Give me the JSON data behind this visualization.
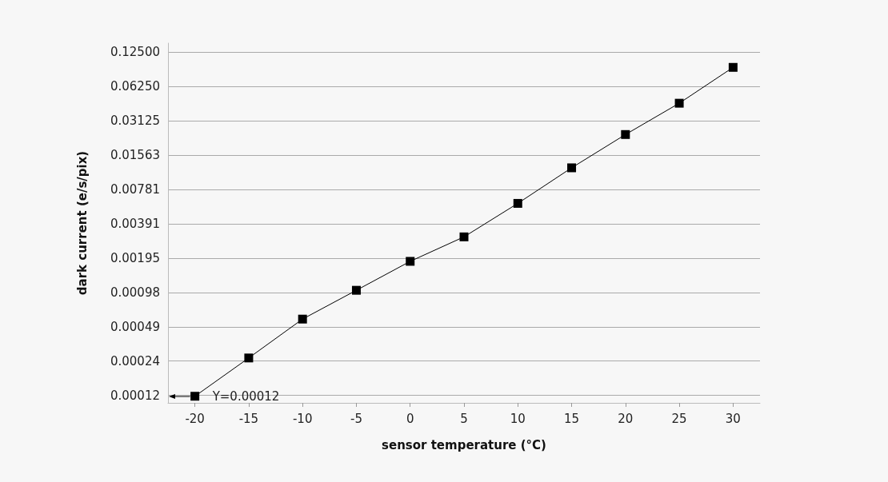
{
  "chart_data": {
    "type": "line",
    "xlabel": "sensor temperature (°C)",
    "ylabel": "dark current (e/s/pix)",
    "x": [
      -20,
      -15,
      -10,
      -5,
      0,
      5,
      10,
      15,
      20,
      25,
      30
    ],
    "series": [
      {
        "color": "#000000",
        "values": [
          0.00012,
          0.00026,
          0.00057,
          0.00102,
          0.00183,
          0.003,
          0.0059,
          0.0121,
          0.0237,
          0.0446,
          0.092
        ]
      }
    ],
    "xlim": [
      -22.5,
      32.5
    ],
    "xticks": [
      -20,
      -15,
      -10,
      -5,
      0,
      5,
      10,
      15,
      20,
      25,
      30
    ],
    "ylim": [
      0.000105,
      0.15
    ],
    "yticks": [
      {
        "value": 0.0001220703125,
        "label": "0.00012"
      },
      {
        "value": 0.000244140625,
        "label": "0.00024"
      },
      {
        "value": 0.00048828125,
        "label": "0.00049"
      },
      {
        "value": 0.0009765625,
        "label": "0.00098"
      },
      {
        "value": 0.001953125,
        "label": "0.00195"
      },
      {
        "value": 0.00390625,
        "label": "0.00391"
      },
      {
        "value": 0.0078125,
        "label": "0.00781"
      },
      {
        "value": 0.015625,
        "label": "0.01563"
      },
      {
        "value": 0.03125,
        "label": "0.03125"
      },
      {
        "value": 0.0625,
        "label": "0.06250"
      },
      {
        "value": 0.125,
        "label": "0.12500"
      }
    ],
    "log": "y",
    "grid": "y",
    "marker": "square",
    "line_style": "solid",
    "annotations": [
      {
        "text": "Y=0.00012",
        "x": -20,
        "y": 0.00012
      }
    ]
  }
}
